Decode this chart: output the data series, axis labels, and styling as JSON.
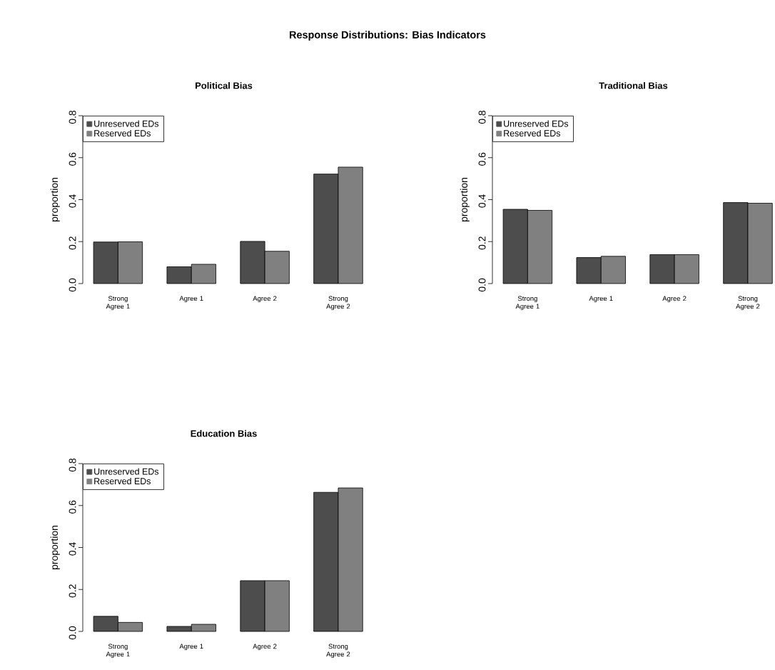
{
  "chart_data": [
    {
      "type": "bar",
      "title": "Political Bias",
      "annotations": [
        "Response Distributions: Bias Indicators"
      ],
      "ylabel": "proportion",
      "categories": [
        "Strong Agree 1",
        "Agree 1",
        "Agree 2",
        "Strong Agree 2"
      ],
      "series": [
        {
          "name": "Unreserved EDs",
          "color": "#4d4d4d",
          "values": [
            0.198,
            0.08,
            0.201,
            0.522
          ]
        },
        {
          "name": "Reserved EDs",
          "color": "#808080",
          "values": [
            0.199,
            0.092,
            0.154,
            0.555
          ]
        }
      ],
      "ylim": [
        0,
        0.8
      ],
      "yticks": [
        {
          "value": 0,
          "label": "0.0"
        },
        {
          "value": 0.2,
          "label": "0.2"
        },
        {
          "value": 0.4,
          "label": "0.4"
        },
        {
          "value": 0.6,
          "label": "0.6"
        },
        {
          "value": 0.8,
          "label": "0.8"
        }
      ],
      "legend": "top left"
    },
    {
      "type": "bar",
      "title": "Traditional Bias",
      "ylabel": "proportion",
      "categories": [
        "Strong Agree 1",
        "Agree 1",
        "Agree 2",
        "Strong Agree 2"
      ],
      "series": [
        {
          "name": "Unreserved EDs",
          "color": "#4d4d4d",
          "values": [
            0.354,
            0.124,
            0.138,
            0.386
          ]
        },
        {
          "name": "Reserved EDs",
          "color": "#808080",
          "values": [
            0.349,
            0.13,
            0.138,
            0.383
          ]
        }
      ],
      "ylim": [
        0,
        0.8
      ],
      "yticks": [
        {
          "value": 0,
          "label": "0.0"
        },
        {
          "value": 0.2,
          "label": "0.2"
        },
        {
          "value": 0.4,
          "label": "0.4"
        },
        {
          "value": 0.6,
          "label": "0.6"
        },
        {
          "value": 0.8,
          "label": "0.8"
        }
      ],
      "legend": "top left"
    },
    {
      "type": "bar",
      "title": "Education Bias",
      "ylabel": "proportion",
      "categories": [
        "Strong Agree 1",
        "Agree 1",
        "Agree 2",
        "Strong Agree 2"
      ],
      "series": [
        {
          "name": "Unreserved EDs",
          "color": "#4d4d4d",
          "values": [
            0.072,
            0.024,
            0.242,
            0.663
          ]
        },
        {
          "name": "Reserved EDs",
          "color": "#808080",
          "values": [
            0.043,
            0.034,
            0.242,
            0.684
          ]
        }
      ],
      "ylim": [
        0,
        0.8
      ],
      "yticks": [
        {
          "value": 0,
          "label": "0.0"
        },
        {
          "value": 0.2,
          "label": "0.2"
        },
        {
          "value": 0.4,
          "label": "0.4"
        },
        {
          "value": 0.6,
          "label": "0.6"
        },
        {
          "value": 0.8,
          "label": "0.8"
        }
      ],
      "legend": "top left"
    }
  ]
}
